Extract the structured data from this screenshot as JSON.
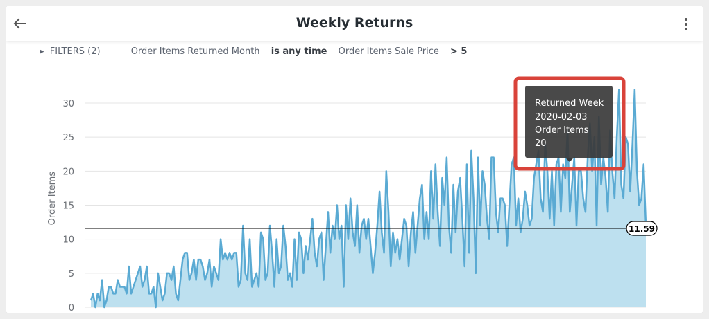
{
  "header": {
    "title": "Weekly Returns"
  },
  "filters": {
    "label": "FILTERS (2)",
    "items": [
      {
        "field": "Order Items Returned Month",
        "condition": "is any time"
      },
      {
        "field": "Order Items Sale Price",
        "condition": "> 5"
      }
    ]
  },
  "chart_data": {
    "type": "area",
    "ylabel": "Order Items",
    "color": "#5aaad3",
    "fill_color": "#bde0ef",
    "ylim": [
      0,
      32
    ],
    "yticks": [
      0,
      5,
      10,
      15,
      20,
      25,
      30
    ],
    "grid": true,
    "reference_line": {
      "value": 11.59,
      "color": "#000000"
    },
    "tooltip": {
      "title": "Returned Week",
      "date": "2020-02-03",
      "label": "Order Items",
      "value": 20
    },
    "values": [
      1,
      2,
      0,
      2,
      1,
      4,
      0,
      1,
      3,
      3,
      2,
      2,
      4,
      3,
      3,
      3,
      2,
      6,
      2,
      3,
      4,
      5,
      6,
      3,
      4,
      6,
      2,
      2,
      3,
      0,
      5,
      3,
      1,
      2,
      5,
      5,
      4,
      6,
      2,
      1,
      4,
      7,
      8,
      8,
      4,
      5,
      7,
      4,
      7,
      7,
      6,
      4,
      5,
      7,
      3,
      6,
      5,
      4,
      10,
      7,
      8,
      7,
      8,
      7,
      8,
      8,
      3,
      4,
      12,
      5,
      4,
      10,
      3,
      4,
      5,
      3,
      11,
      10,
      4,
      5,
      12,
      8,
      3,
      10,
      5,
      6,
      12,
      9,
      4,
      5,
      3,
      10,
      4,
      11,
      10,
      5,
      9,
      7,
      10,
      13,
      8,
      6,
      10,
      11,
      4,
      9,
      14,
      8,
      12,
      10,
      15,
      10,
      12,
      3,
      15,
      10,
      16,
      11,
      9,
      15,
      8,
      12,
      13,
      10,
      13,
      9,
      5,
      8,
      12,
      17,
      11,
      8,
      20,
      14,
      6,
      11,
      8,
      10,
      7,
      10,
      13,
      12,
      6,
      11,
      14,
      8,
      12,
      16,
      18,
      10,
      14,
      10,
      20,
      13,
      21,
      14,
      9,
      19,
      15,
      22,
      12,
      8,
      18,
      11,
      17,
      19,
      13,
      6,
      21,
      8,
      23,
      16,
      5,
      22,
      12,
      20,
      18,
      13,
      10,
      22,
      22,
      14,
      11,
      16,
      16,
      15,
      9,
      15,
      21,
      22,
      12,
      16,
      11,
      13,
      17,
      15,
      12,
      13,
      19,
      21,
      23,
      16,
      14,
      24,
      20,
      13,
      20,
      12,
      21,
      22,
      14,
      21,
      19,
      26,
      14,
      18,
      22,
      12,
      20,
      20,
      16,
      14,
      22,
      27,
      20,
      25,
      12,
      28,
      18,
      22,
      19,
      14,
      26,
      20,
      16,
      25,
      32,
      18,
      16,
      25,
      24,
      17,
      24,
      32,
      20,
      15,
      16,
      21,
      12
    ]
  }
}
